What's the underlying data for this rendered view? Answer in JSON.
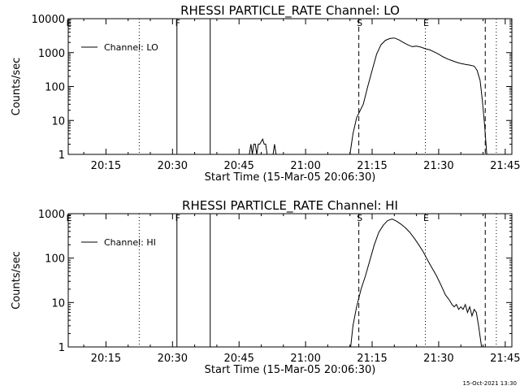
{
  "footer": {
    "timestamp": "15-Oct-2021 13:30"
  },
  "chart_data": [
    {
      "type": "line",
      "title": "RHESSI PARTICLE_RATE Channel: LO",
      "xlabel": "Start Time (15-Mar-05 20:06:30)",
      "ylabel": "Counts/sec",
      "y_scale": "log",
      "ylim": [
        1,
        10000
      ],
      "xlim": [
        "20:06:30",
        "21:46:30"
      ],
      "x_ticks": [
        "20:15",
        "20:30",
        "20:45",
        "21:00",
        "21:15",
        "21:30",
        "21:45"
      ],
      "y_ticks": [
        "1",
        "10",
        "100",
        "1000",
        "10000"
      ],
      "legend": {
        "label": "Channel: LO",
        "position": "top-left"
      },
      "markers": [
        {
          "label": "E",
          "time": "20:06:30",
          "style": "dotted"
        },
        {
          "label": "",
          "time": "20:22:30",
          "style": "dotted"
        },
        {
          "label": "F",
          "time": "20:31:00",
          "style": "solid"
        },
        {
          "label": "",
          "time": "20:38:30",
          "style": "solid"
        },
        {
          "label": "S",
          "time": "21:12:00",
          "style": "dashed"
        },
        {
          "label": "E",
          "time": "21:27:00",
          "style": "dotted"
        },
        {
          "label": "",
          "time": "21:40:30",
          "style": "dashed"
        },
        {
          "label": "",
          "time": "21:43:00",
          "style": "dotted"
        }
      ],
      "series": [
        {
          "name": "Channel: LO",
          "segments": [
            [
              [
                "20:47:20",
                1
              ],
              [
                "20:47:40",
                2
              ],
              [
                "20:48:00",
                1
              ],
              [
                "20:48:20",
                2
              ],
              [
                "20:48:40",
                2
              ],
              [
                "20:49:00",
                1
              ],
              [
                "20:49:20",
                2
              ],
              [
                "20:49:40",
                2
              ],
              [
                "20:50:20",
                2.8
              ],
              [
                "20:50:40",
                2
              ],
              [
                "20:51:00",
                2
              ],
              [
                "20:51:20",
                1
              ]
            ],
            [
              [
                "20:52:40",
                1
              ],
              [
                "20:53:00",
                2
              ],
              [
                "20:53:20",
                1
              ]
            ],
            [
              [
                "21:10:00",
                1
              ],
              [
                "21:10:40",
                4
              ],
              [
                "21:11:30",
                12
              ],
              [
                "21:13:00",
                30
              ],
              [
                "21:14:00",
                100
              ],
              [
                "21:15:00",
                300
              ],
              [
                "21:16:00",
                900
              ],
              [
                "21:17:00",
                1700
              ],
              [
                "21:18:00",
                2300
              ],
              [
                "21:19:00",
                2600
              ],
              [
                "21:20:00",
                2700
              ],
              [
                "21:21:00",
                2400
              ],
              [
                "21:22:00",
                2000
              ],
              [
                "21:23:00",
                1700
              ],
              [
                "21:24:00",
                1500
              ],
              [
                "21:25:00",
                1550
              ],
              [
                "21:26:00",
                1450
              ],
              [
                "21:27:00",
                1300
              ],
              [
                "21:28:00",
                1200
              ],
              [
                "21:29:00",
                1050
              ],
              [
                "21:30:00",
                900
              ],
              [
                "21:31:00",
                750
              ],
              [
                "21:32:00",
                650
              ],
              [
                "21:33:00",
                580
              ],
              [
                "21:34:00",
                520
              ],
              [
                "21:35:00",
                480
              ],
              [
                "21:36:00",
                450
              ],
              [
                "21:37:00",
                430
              ],
              [
                "21:38:00",
                400
              ],
              [
                "21:38:40",
                300
              ],
              [
                "21:39:20",
                150
              ],
              [
                "21:39:50",
                40
              ],
              [
                "21:40:20",
                8
              ],
              [
                "21:40:50",
                1
              ]
            ]
          ]
        }
      ]
    },
    {
      "type": "line",
      "title": "RHESSI PARTICLE_RATE Channel: HI",
      "xlabel": "Start Time (15-Mar-05 20:06:30)",
      "ylabel": "Counts/sec",
      "y_scale": "log",
      "ylim": [
        1,
        1000
      ],
      "xlim": [
        "20:06:30",
        "21:46:30"
      ],
      "x_ticks": [
        "20:15",
        "20:30",
        "20:45",
        "21:00",
        "21:15",
        "21:30",
        "21:45"
      ],
      "y_ticks": [
        "1",
        "10",
        "100",
        "1000"
      ],
      "legend": {
        "label": "Channel: HI",
        "position": "top-left"
      },
      "markers": [
        {
          "label": "E",
          "time": "20:06:30",
          "style": "dotted"
        },
        {
          "label": "",
          "time": "20:22:30",
          "style": "dotted"
        },
        {
          "label": "F",
          "time": "20:31:00",
          "style": "solid"
        },
        {
          "label": "",
          "time": "20:38:30",
          "style": "solid"
        },
        {
          "label": "S",
          "time": "21:12:00",
          "style": "dashed"
        },
        {
          "label": "E",
          "time": "21:27:00",
          "style": "dotted"
        },
        {
          "label": "",
          "time": "21:40:30",
          "style": "dashed"
        },
        {
          "label": "",
          "time": "21:43:00",
          "style": "dotted"
        }
      ],
      "series": [
        {
          "name": "Channel: HI",
          "segments": [
            [
              [
                "21:10:10",
                1
              ],
              [
                "21:10:40",
                3
              ],
              [
                "21:11:30",
                8
              ],
              [
                "21:12:30",
                20
              ],
              [
                "21:13:30",
                40
              ],
              [
                "21:14:30",
                90
              ],
              [
                "21:15:30",
                200
              ],
              [
                "21:16:30",
                380
              ],
              [
                "21:17:30",
                550
              ],
              [
                "21:18:30",
                700
              ],
              [
                "21:19:30",
                760
              ],
              [
                "21:20:30",
                680
              ],
              [
                "21:21:30",
                580
              ],
              [
                "21:22:30",
                480
              ],
              [
                "21:23:30",
                380
              ],
              [
                "21:24:30",
                280
              ],
              [
                "21:25:30",
                200
              ],
              [
                "21:26:30",
                140
              ],
              [
                "21:27:30",
                90
              ],
              [
                "21:28:30",
                60
              ],
              [
                "21:29:30",
                40
              ],
              [
                "21:30:30",
                25
              ],
              [
                "21:31:30",
                15
              ],
              [
                "21:32:30",
                11
              ],
              [
                "21:33:00",
                9
              ],
              [
                "21:33:30",
                8
              ],
              [
                "21:34:00",
                9
              ],
              [
                "21:34:30",
                7
              ],
              [
                "21:35:00",
                8
              ],
              [
                "21:35:30",
                7
              ],
              [
                "21:36:00",
                9
              ],
              [
                "21:36:30",
                6
              ],
              [
                "21:37:00",
                8
              ],
              [
                "21:37:30",
                5
              ],
              [
                "21:38:00",
                7
              ],
              [
                "21:38:30",
                6
              ],
              [
                "21:39:00",
                3
              ],
              [
                "21:39:40",
                1
              ]
            ]
          ]
        }
      ]
    }
  ]
}
